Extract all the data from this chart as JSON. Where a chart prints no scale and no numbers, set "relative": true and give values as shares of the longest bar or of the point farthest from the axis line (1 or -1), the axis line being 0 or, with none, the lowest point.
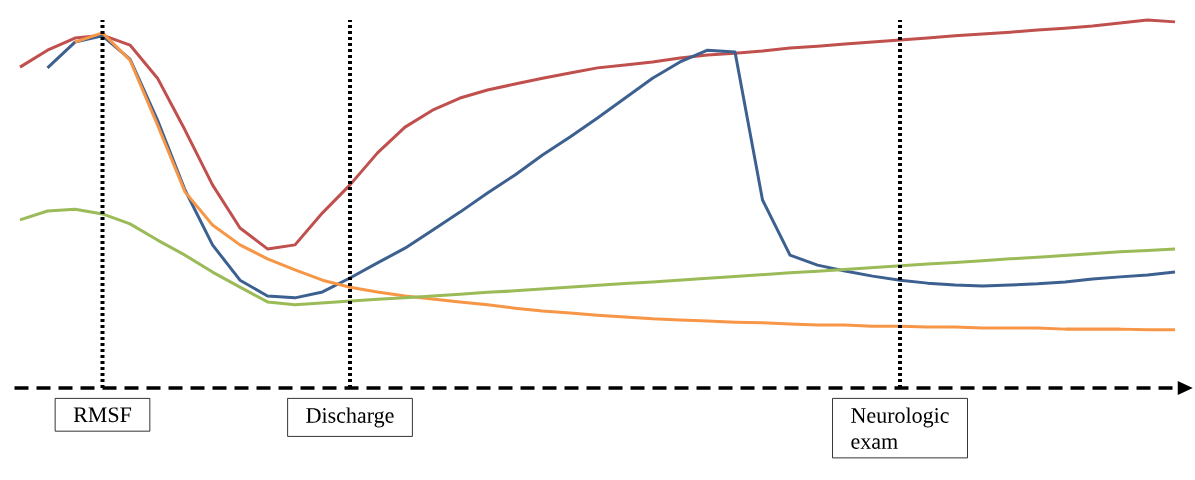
{
  "chart_data": {
    "type": "line",
    "relative": true,
    "categories": [
      null,
      null,
      null,
      "RMSF",
      null,
      null,
      null,
      null,
      null,
      null,
      null,
      null,
      "Discharge",
      null,
      null,
      null,
      null,
      null,
      null,
      null,
      null,
      null,
      null,
      null,
      null,
      null,
      null,
      null,
      null,
      null,
      null,
      null,
      "Neurologic exam",
      null,
      null,
      null,
      null,
      null,
      null,
      null,
      null,
      null,
      null
    ],
    "series": [
      {
        "color": "#c0504d",
        "values": [
          0.872,
          0.918,
          0.951,
          0.959,
          0.932,
          0.842,
          0.701,
          0.552,
          0.435,
          0.378,
          0.389,
          0.476,
          0.552,
          0.639,
          0.709,
          0.755,
          0.788,
          0.81,
          0.826,
          0.842,
          0.856,
          0.87,
          0.878,
          0.886,
          0.897,
          0.905,
          0.91,
          0.916,
          0.924,
          0.929,
          0.935,
          0.94,
          0.946,
          0.951,
          0.957,
          0.962,
          0.967,
          0.973,
          0.978,
          0.984,
          0.992,
          1,
          0.995
        ]
      },
      {
        "color": "#3c6090",
        "values": [
          null,
          0.87,
          0.94,
          0.957,
          0.894,
          0.728,
          0.538,
          0.389,
          0.293,
          0.25,
          0.245,
          0.261,
          0.299,
          0.34,
          0.38,
          0.429,
          0.478,
          0.53,
          0.579,
          0.633,
          0.682,
          0.734,
          0.788,
          0.842,
          0.886,
          0.918,
          0.913,
          0.511,
          0.361,
          0.334,
          0.318,
          0.304,
          0.293,
          0.285,
          0.28,
          0.277,
          0.28,
          0.283,
          0.288,
          0.296,
          0.302,
          0.307,
          0.315
        ]
      },
      {
        "color": "#f79646",
        "values": [
          null,
          null,
          0.94,
          0.965,
          0.891,
          0.715,
          0.533,
          0.443,
          0.389,
          0.351,
          0.321,
          0.293,
          0.274,
          0.261,
          0.25,
          0.242,
          0.234,
          0.226,
          0.217,
          0.209,
          0.204,
          0.198,
          0.193,
          0.188,
          0.185,
          0.182,
          0.179,
          0.177,
          0.174,
          0.171,
          0.171,
          0.168,
          0.168,
          0.166,
          0.166,
          0.163,
          0.163,
          0.163,
          0.16,
          0.16,
          0.16,
          0.158,
          0.158
        ]
      },
      {
        "color": "#9bbb59",
        "values": [
          0.457,
          0.481,
          0.486,
          0.473,
          0.446,
          0.402,
          0.361,
          0.315,
          0.274,
          0.234,
          0.226,
          0.231,
          0.236,
          0.241,
          0.245,
          0.25,
          0.255,
          0.26,
          0.264,
          0.269,
          0.274,
          0.279,
          0.284,
          0.288,
          0.293,
          0.298,
          0.303,
          0.308,
          0.313,
          0.317,
          0.322,
          0.327,
          0.332,
          0.337,
          0.341,
          0.346,
          0.351,
          0.355,
          0.36,
          0.365,
          0.37,
          0.374,
          0.378
        ]
      }
    ],
    "ref_lines": [
      {
        "axis": "x",
        "value": "RMSF",
        "color": "#000000",
        "line_style": "dotted"
      },
      {
        "axis": "x",
        "value": "Discharge",
        "color": "#000000",
        "line_style": "dotted"
      },
      {
        "axis": "x",
        "value": "Neurologic exam",
        "color": "#000000",
        "line_style": "dotted"
      }
    ]
  }
}
